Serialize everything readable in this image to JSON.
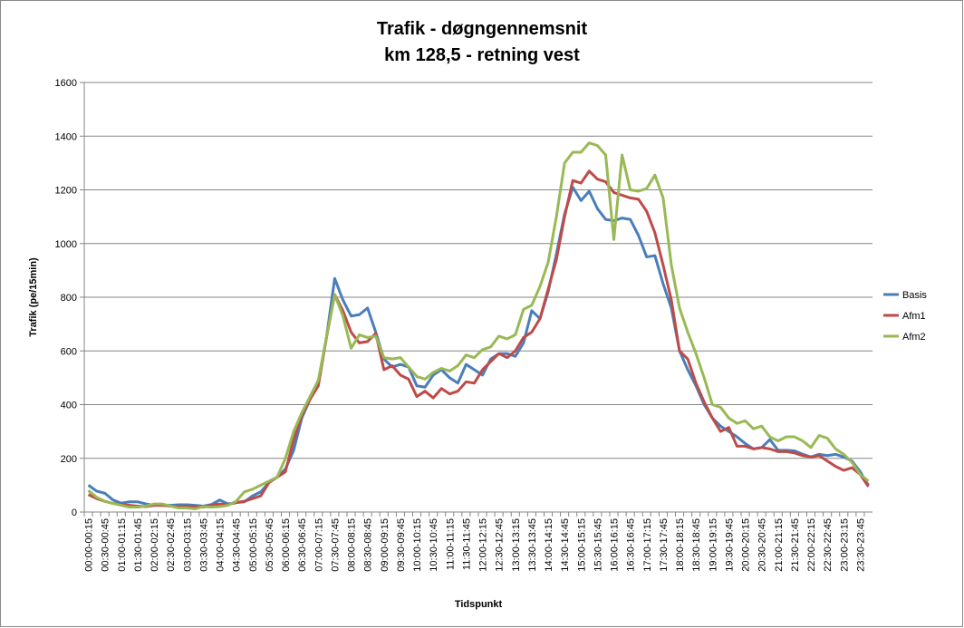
{
  "chart_data": {
    "type": "line",
    "title": [
      "Trafik - døgngennemsnit",
      "km 128,5  - retning vest"
    ],
    "y_label": "Trafik (pe/15min)",
    "x_label": "Tidspunkt",
    "categories": [
      "00:00-00:15",
      null,
      "00:30-00:45",
      null,
      "01:00-01:15",
      null,
      "01:30-01:45",
      null,
      "02:00-02:15",
      null,
      "02:30-02:45",
      null,
      "03:00-03:15",
      null,
      "03:30-03:45",
      null,
      "04:00-04:15",
      null,
      "04:30-04:45",
      null,
      "05:00-05:15",
      null,
      "05:30-05:45",
      null,
      "06:00-06:15",
      null,
      "06:30-06:45",
      null,
      "07:00-07:15",
      null,
      "07:30-07:45",
      null,
      "08:00-08:15",
      null,
      "08:30-08:45",
      null,
      "09:00-09:15",
      null,
      "09:30-09:45",
      null,
      "10:00-10:15",
      null,
      "10:30-10:45",
      null,
      "11:00-11:15",
      null,
      "11:30-11:45",
      null,
      "12:00-12:15",
      null,
      "12:30-12:45",
      null,
      "13:00-13:15",
      null,
      "13:30-13:45",
      null,
      "14:00-14:15",
      null,
      "14:30-14:45",
      null,
      "15:00-15:15",
      null,
      "15:30-15:45",
      null,
      "16:00-16:15",
      null,
      "16:30-16:45",
      null,
      "17:00-17:15",
      null,
      "17:30-17:45",
      null,
      "18:00-18:15",
      null,
      "18:30-18:45",
      null,
      "19:00-19:15",
      null,
      "19:30-19:45",
      null,
      "20:00-20:15",
      null,
      "20:30-20:45",
      null,
      "21:00-21:15",
      null,
      "21:30-21:45",
      null,
      "22:00-22:15",
      null,
      "22:30-22:45",
      null,
      "23:00-23:15",
      null,
      "23:30-23:45",
      null
    ],
    "series": [
      {
        "name": "Basis",
        "color": "#4a7ebb",
        "values": [
          100,
          78,
          70,
          45,
          33,
          38,
          38,
          30,
          25,
          25,
          25,
          27,
          27,
          25,
          22,
          28,
          45,
          30,
          35,
          38,
          60,
          75,
          110,
          130,
          160,
          230,
          350,
          420,
          480,
          650,
          870,
          790,
          730,
          735,
          760,
          670,
          570,
          540,
          550,
          540,
          470,
          465,
          510,
          530,
          500,
          480,
          550,
          530,
          510,
          570,
          590,
          590,
          580,
          630,
          750,
          720,
          820,
          960,
          1110,
          1210,
          1160,
          1195,
          1130,
          1090,
          1085,
          1095,
          1090,
          1030,
          950,
          955,
          850,
          760,
          600,
          530,
          470,
          400,
          350,
          320,
          300,
          280,
          255,
          235,
          240,
          270,
          230,
          230,
          228,
          215,
          205,
          215,
          210,
          215,
          205,
          190,
          150,
          100
        ]
      },
      {
        "name": "Afm1",
        "color": "#be4b48",
        "values": [
          65,
          50,
          40,
          32,
          28,
          25,
          22,
          20,
          25,
          25,
          22,
          20,
          20,
          20,
          18,
          25,
          30,
          28,
          35,
          40,
          50,
          60,
          110,
          130,
          150,
          270,
          360,
          420,
          470,
          650,
          810,
          750,
          670,
          630,
          635,
          665,
          530,
          545,
          510,
          495,
          430,
          450,
          425,
          460,
          440,
          450,
          485,
          480,
          530,
          560,
          590,
          575,
          600,
          650,
          670,
          720,
          830,
          940,
          1100,
          1235,
          1225,
          1270,
          1240,
          1230,
          1190,
          1180,
          1170,
          1165,
          1120,
          1040,
          920,
          790,
          600,
          570,
          480,
          410,
          350,
          300,
          315,
          245,
          245,
          235,
          240,
          235,
          225,
          225,
          220,
          210,
          205,
          210,
          190,
          170,
          155,
          165,
          140,
          95
        ]
      },
      {
        "name": "Afm2",
        "color": "#98b954",
        "values": [
          80,
          55,
          40,
          32,
          25,
          18,
          18,
          22,
          30,
          30,
          22,
          15,
          15,
          12,
          20,
          18,
          20,
          25,
          40,
          75,
          85,
          100,
          115,
          130,
          200,
          300,
          370,
          430,
          490,
          650,
          810,
          730,
          610,
          660,
          650,
          655,
          575,
          570,
          575,
          540,
          505,
          495,
          520,
          535,
          525,
          545,
          585,
          575,
          605,
          615,
          655,
          645,
          660,
          755,
          770,
          840,
          930,
          1100,
          1300,
          1340,
          1340,
          1375,
          1365,
          1330,
          1015,
          1330,
          1200,
          1195,
          1205,
          1255,
          1170,
          920,
          760,
          670,
          590,
          500,
          400,
          390,
          350,
          330,
          340,
          310,
          320,
          280,
          265,
          280,
          280,
          265,
          240,
          285,
          275,
          235,
          215,
          185,
          140,
          115
        ]
      }
    ],
    "ylim": [
      0,
      1600
    ],
    "yticks": [
      0,
      200,
      400,
      600,
      800,
      1000,
      1200,
      1400,
      1600
    ],
    "grid": true,
    "legend": "right"
  }
}
